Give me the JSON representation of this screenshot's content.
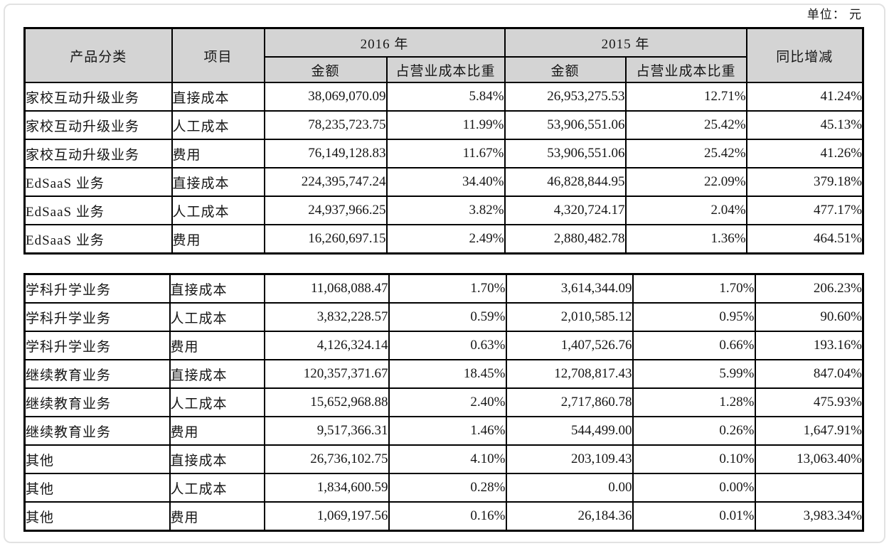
{
  "page": {
    "unit_label": "单位： 元"
  },
  "table": {
    "headers": {
      "product_category": "产品分类",
      "item": "项目",
      "year_2016": "2016 年",
      "year_2015": "2015 年",
      "amount": "金额",
      "cost_ratio": "占营业成本比重",
      "yoy_change": "同比增减"
    },
    "section1_rows": [
      {
        "category": "家校互动升级业务",
        "item": "直接成本",
        "amount_2016": "38,069,070.09",
        "ratio_2016": "5.84%",
        "amount_2015": "26,953,275.53",
        "ratio_2015": "12.71%",
        "yoy": "41.24%"
      },
      {
        "category": "家校互动升级业务",
        "item": "人工成本",
        "amount_2016": "78,235,723.75",
        "ratio_2016": "11.99%",
        "amount_2015": "53,906,551.06",
        "ratio_2015": "25.42%",
        "yoy": "45.13%"
      },
      {
        "category": "家校互动升级业务",
        "item": "费用",
        "amount_2016": "76,149,128.83",
        "ratio_2016": "11.67%",
        "amount_2015": "53,906,551.06",
        "ratio_2015": "25.42%",
        "yoy": "41.26%"
      },
      {
        "category": "EdSaaS 业务",
        "item": "直接成本",
        "amount_2016": "224,395,747.24",
        "ratio_2016": "34.40%",
        "amount_2015": "46,828,844.95",
        "ratio_2015": "22.09%",
        "yoy": "379.18%"
      },
      {
        "category": "EdSaaS 业务",
        "item": "人工成本",
        "amount_2016": "24,937,966.25",
        "ratio_2016": "3.82%",
        "amount_2015": "4,320,724.17",
        "ratio_2015": "2.04%",
        "yoy": "477.17%"
      },
      {
        "category": "EdSaaS 业务",
        "item": "费用",
        "amount_2016": "16,260,697.15",
        "ratio_2016": "2.49%",
        "amount_2015": "2,880,482.78",
        "ratio_2015": "1.36%",
        "yoy": "464.51%"
      }
    ],
    "section2_rows": [
      {
        "category": "学科升学业务",
        "item": "直接成本",
        "amount_2016": "11,068,088.47",
        "ratio_2016": "1.70%",
        "amount_2015": "3,614,344.09",
        "ratio_2015": "1.70%",
        "yoy": "206.23%"
      },
      {
        "category": "学科升学业务",
        "item": "人工成本",
        "amount_2016": "3,832,228.57",
        "ratio_2016": "0.59%",
        "amount_2015": "2,010,585.12",
        "ratio_2015": "0.95%",
        "yoy": "90.60%"
      },
      {
        "category": "学科升学业务",
        "item": "费用",
        "amount_2016": "4,126,324.14",
        "ratio_2016": "0.63%",
        "amount_2015": "1,407,526.76",
        "ratio_2015": "0.66%",
        "yoy": "193.16%"
      },
      {
        "category": "继续教育业务",
        "item": "直接成本",
        "amount_2016": "120,357,371.67",
        "ratio_2016": "18.45%",
        "amount_2015": "12,708,817.43",
        "ratio_2015": "5.99%",
        "yoy": "847.04%"
      },
      {
        "category": "继续教育业务",
        "item": "人工成本",
        "amount_2016": "15,652,968.88",
        "ratio_2016": "2.40%",
        "amount_2015": "2,717,860.78",
        "ratio_2015": "1.28%",
        "yoy": "475.93%"
      },
      {
        "category": "继续教育业务",
        "item": "费用",
        "amount_2016": "9,517,366.31",
        "ratio_2016": "1.46%",
        "amount_2015": "544,499.00",
        "ratio_2015": "0.26%",
        "yoy": "1,647.91%"
      },
      {
        "category": "其他",
        "item": "直接成本",
        "amount_2016": "26,736,102.75",
        "ratio_2016": "4.10%",
        "amount_2015": "203,109.43",
        "ratio_2015": "0.10%",
        "yoy": "13,063.40%"
      },
      {
        "category": "其他",
        "item": "人工成本",
        "amount_2016": "1,834,600.59",
        "ratio_2016": "0.28%",
        "amount_2015": "0.00",
        "ratio_2015": "0.00%",
        "yoy": ""
      },
      {
        "category": "其他",
        "item": "费用",
        "amount_2016": "1,069,197.56",
        "ratio_2016": "0.16%",
        "amount_2015": "26,184.36",
        "ratio_2015": "0.01%",
        "yoy": "3,983.34%"
      }
    ]
  }
}
